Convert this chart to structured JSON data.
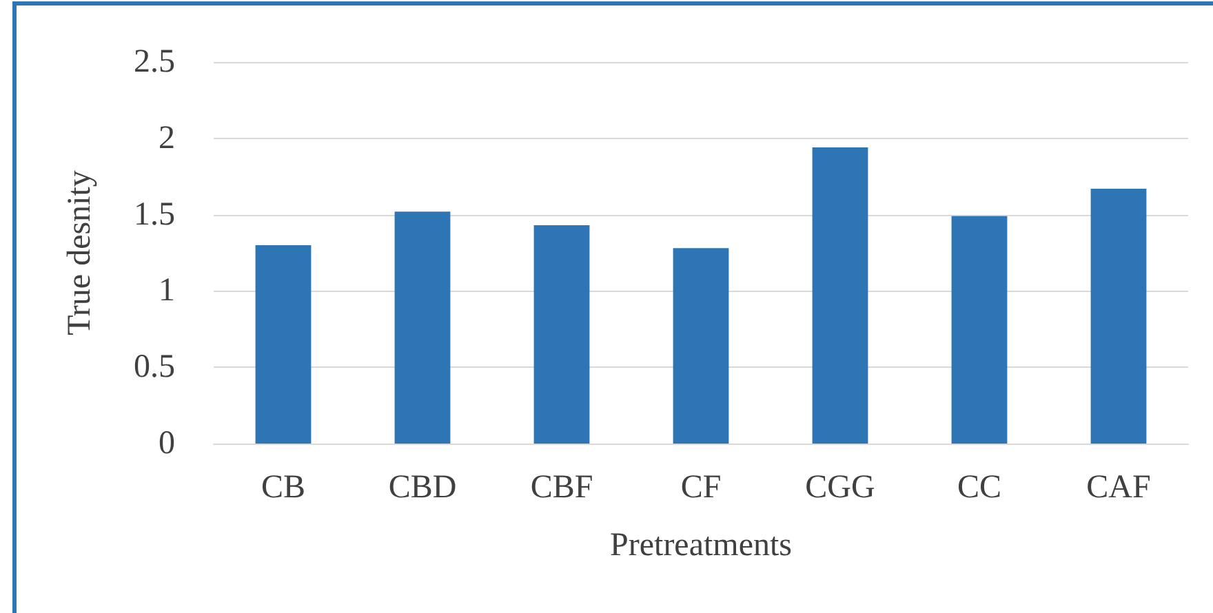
{
  "chart_data": {
    "type": "bar",
    "xlabel": "Pretreatments",
    "ylabel": "True desnity",
    "categories": [
      "CB",
      "CBD",
      "CBF",
      "CF",
      "CGG",
      "CC",
      "CAF"
    ],
    "values": [
      1.3,
      1.52,
      1.43,
      1.28,
      1.94,
      1.49,
      1.67
    ],
    "color": "#2e75b6",
    "ylim": [
      0,
      2.5
    ],
    "yticks": [
      0,
      0.5,
      1,
      1.5,
      2,
      2.5
    ],
    "grid": "y"
  }
}
